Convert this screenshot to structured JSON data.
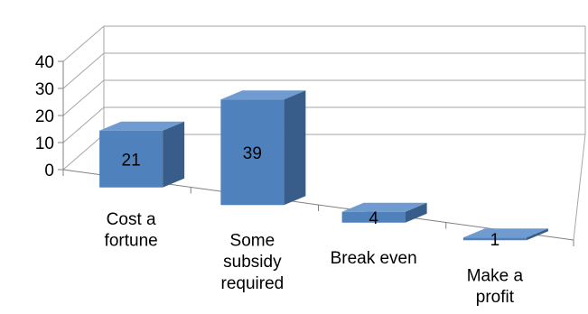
{
  "chart_data": {
    "type": "bar",
    "categories": [
      [
        "Cost a",
        "fortune"
      ],
      [
        "Some",
        "subsidy",
        "required"
      ],
      [
        "Break even"
      ],
      [
        "Make a",
        "profit"
      ]
    ],
    "values": [
      21,
      39,
      4,
      1
    ],
    "data_labels": [
      "21",
      "39",
      "4",
      "1"
    ],
    "ylim": [
      0,
      40
    ],
    "yticks": [
      0,
      10,
      20,
      30,
      40
    ],
    "title": "",
    "xlabel": "",
    "ylabel": "",
    "grid": true,
    "legend": "none",
    "colors": {
      "bar_front": "#4F81BD",
      "bar_side": "#385D8A",
      "bar_top": "#6F9BD1",
      "grid": "#A6A6A6",
      "axis": "#808080"
    }
  }
}
